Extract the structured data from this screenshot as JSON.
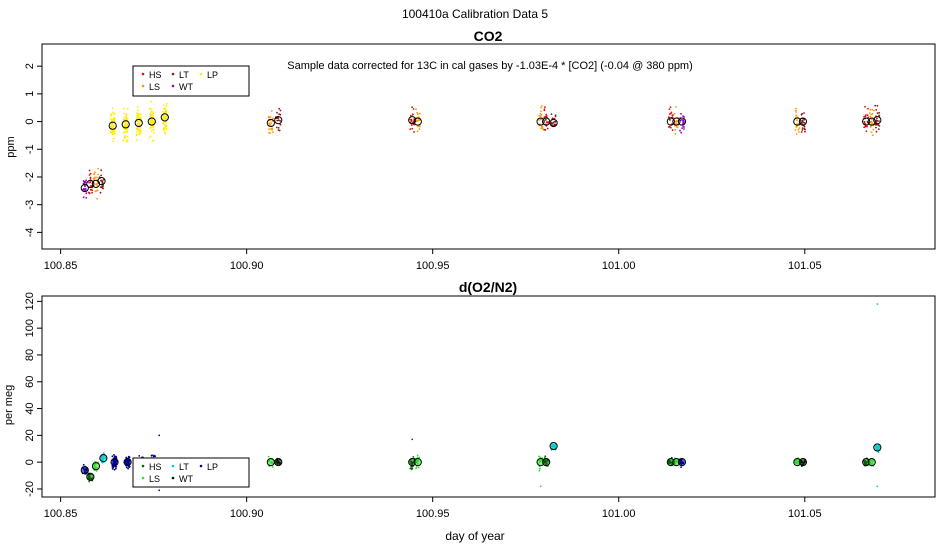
{
  "figure": {
    "title": "100410a   Calibration Data 5"
  },
  "chart_data": [
    {
      "type": "scatter",
      "title": "CO2",
      "annotation": "Sample data corrected for 13C in cal gases by -1.03E-4 * [CO2] (-0.04 @ 380 ppm)",
      "xlabel": "",
      "ylabel": "ppm",
      "xlim": [
        100.845,
        101.085
      ],
      "ylim": [
        -4.6,
        2.8
      ],
      "xticks": [
        100.85,
        100.9,
        100.95,
        101.0,
        101.05
      ],
      "xtick_labels": [
        "100.85",
        "100.90",
        "100.95",
        "101.00",
        "101.05"
      ],
      "yticks": [
        -4,
        -3,
        -2,
        -1,
        0,
        1,
        2
      ],
      "ytick_labels": [
        "-4",
        "-3",
        "-2",
        "-1",
        "0",
        "1",
        "2"
      ],
      "legend": [
        {
          "name": "HS",
          "color": "#dd1111"
        },
        {
          "name": "LS",
          "color": "#ff9900"
        },
        {
          "name": "LT",
          "color": "#8b1a1a"
        },
        {
          "name": "WT",
          "color": "#9900cc"
        },
        {
          "name": "LP",
          "color": "#ffee00"
        }
      ],
      "clusters": [
        {
          "x": 100.8565,
          "y": -2.4,
          "color": "#9900cc",
          "spread": 0.7,
          "n": 22
        },
        {
          "x": 100.858,
          "y": -2.25,
          "color": "#dd1111",
          "spread": 0.7,
          "n": 22
        },
        {
          "x": 100.8595,
          "y": -2.25,
          "color": "#ff9900",
          "spread": 0.8,
          "n": 22
        },
        {
          "x": 100.861,
          "y": -2.15,
          "color": "#8b1a1a",
          "spread": 0.6,
          "n": 22
        },
        {
          "x": 100.864,
          "y": -0.15,
          "color": "#ffee00",
          "spread": 0.9,
          "n": 60
        },
        {
          "x": 100.8675,
          "y": -0.1,
          "color": "#ffee00",
          "spread": 0.9,
          "n": 60
        },
        {
          "x": 100.871,
          "y": -0.05,
          "color": "#ffee00",
          "spread": 0.9,
          "n": 60
        },
        {
          "x": 100.8745,
          "y": 0.0,
          "color": "#ffee00",
          "spread": 0.9,
          "n": 60
        },
        {
          "x": 100.878,
          "y": 0.15,
          "color": "#ffee00",
          "spread": 0.9,
          "n": 60
        },
        {
          "x": 100.9065,
          "y": -0.05,
          "color": "#ff9900",
          "spread": 0.8,
          "n": 22
        },
        {
          "x": 100.9085,
          "y": 0.05,
          "color": "#8b1a1a",
          "spread": 0.7,
          "n": 22
        },
        {
          "x": 100.9445,
          "y": 0.05,
          "color": "#dd1111",
          "spread": 0.7,
          "n": 22
        },
        {
          "x": 100.946,
          "y": 0.0,
          "color": "#ff9900",
          "spread": 0.7,
          "n": 22
        },
        {
          "x": 100.979,
          "y": 0.0,
          "color": "#ff9900",
          "spread": 0.8,
          "n": 22
        },
        {
          "x": 100.9805,
          "y": 0.0,
          "color": "#dd1111",
          "spread": 0.7,
          "n": 22
        },
        {
          "x": 100.9825,
          "y": -0.05,
          "color": "#8b1a1a",
          "spread": 0.7,
          "n": 22
        },
        {
          "x": 101.014,
          "y": 0.0,
          "color": "#dd1111",
          "spread": 0.7,
          "n": 22
        },
        {
          "x": 101.0155,
          "y": 0.0,
          "color": "#ff9900",
          "spread": 0.7,
          "n": 22
        },
        {
          "x": 101.017,
          "y": 0.0,
          "color": "#9900cc",
          "spread": 0.7,
          "n": 22
        },
        {
          "x": 101.048,
          "y": 0.0,
          "color": "#ff9900",
          "spread": 0.8,
          "n": 22
        },
        {
          "x": 101.0495,
          "y": 0.0,
          "color": "#8b1a1a",
          "spread": 0.7,
          "n": 22
        },
        {
          "x": 101.0665,
          "y": 0.0,
          "color": "#dd1111",
          "spread": 0.8,
          "n": 22
        },
        {
          "x": 101.068,
          "y": 0.0,
          "color": "#ff9900",
          "spread": 0.7,
          "n": 22
        },
        {
          "x": 101.0695,
          "y": 0.05,
          "color": "#8b1a1a",
          "spread": 0.7,
          "n": 22
        }
      ],
      "means": [
        {
          "x": 100.8565,
          "y": -2.4
        },
        {
          "x": 100.858,
          "y": -2.25
        },
        {
          "x": 100.8595,
          "y": -2.25
        },
        {
          "x": 100.861,
          "y": -2.15
        },
        {
          "x": 100.864,
          "y": -0.15
        },
        {
          "x": 100.8675,
          "y": -0.1
        },
        {
          "x": 100.871,
          "y": -0.05
        },
        {
          "x": 100.8745,
          "y": 0.0
        },
        {
          "x": 100.878,
          "y": 0.15
        },
        {
          "x": 100.9065,
          "y": -0.05
        },
        {
          "x": 100.9085,
          "y": 0.05
        },
        {
          "x": 100.9445,
          "y": 0.05
        },
        {
          "x": 100.946,
          "y": 0.0
        },
        {
          "x": 100.979,
          "y": 0.0
        },
        {
          "x": 100.9805,
          "y": 0.0
        },
        {
          "x": 100.9825,
          "y": -0.05
        },
        {
          "x": 101.014,
          "y": 0.0
        },
        {
          "x": 101.0155,
          "y": 0.0
        },
        {
          "x": 101.017,
          "y": 0.0
        },
        {
          "x": 101.048,
          "y": 0.0
        },
        {
          "x": 101.0495,
          "y": 0.0
        },
        {
          "x": 101.0665,
          "y": 0.0
        },
        {
          "x": 101.068,
          "y": 0.0
        },
        {
          "x": 101.0695,
          "y": 0.05
        }
      ]
    },
    {
      "type": "scatter",
      "title": "d(O2/N2)",
      "xlabel": "day of year",
      "ylabel": "per meg",
      "xlim": [
        100.845,
        101.085
      ],
      "ylim": [
        -26,
        124
      ],
      "xticks": [
        100.85,
        100.9,
        100.95,
        101.0,
        101.05
      ],
      "xtick_labels": [
        "100.85",
        "100.90",
        "100.95",
        "101.00",
        "101.05"
      ],
      "yticks": [
        -20,
        0,
        20,
        40,
        60,
        80,
        100,
        120
      ],
      "ytick_labels": [
        "-20",
        "0",
        "20",
        "40",
        "60",
        "80",
        "100",
        "120"
      ],
      "legend": [
        {
          "name": "HS",
          "color": "#006400"
        },
        {
          "name": "LS",
          "color": "#33dd33"
        },
        {
          "name": "LT",
          "color": "#00cccc"
        },
        {
          "name": "WT",
          "color": "#002200"
        },
        {
          "name": "LP",
          "color": "#000099"
        }
      ],
      "clusters": [
        {
          "x": 100.8565,
          "y": -6,
          "color": "#000099",
          "spread": 6,
          "n": 22
        },
        {
          "x": 100.858,
          "y": -11,
          "color": "#006400",
          "spread": 6,
          "n": 22
        },
        {
          "x": 100.8595,
          "y": -3,
          "color": "#33dd33",
          "spread": 6,
          "n": 22
        },
        {
          "x": 100.8615,
          "y": 3,
          "color": "#00cccc",
          "spread": 6,
          "n": 22
        },
        {
          "x": 100.8645,
          "y": 0,
          "color": "#000099",
          "spread": 8,
          "n": 60
        },
        {
          "x": 100.868,
          "y": 0,
          "color": "#000099",
          "spread": 8,
          "n": 60
        },
        {
          "x": 100.8715,
          "y": 0,
          "color": "#000099",
          "spread": 8,
          "n": 60
        },
        {
          "x": 100.875,
          "y": 0,
          "color": "#000099",
          "spread": 10,
          "n": 60
        },
        {
          "x": 100.9065,
          "y": 0,
          "color": "#33dd33",
          "spread": 6,
          "n": 22
        },
        {
          "x": 100.9085,
          "y": 0,
          "color": "#002200",
          "spread": 5,
          "n": 22
        },
        {
          "x": 100.9445,
          "y": 0,
          "color": "#006400",
          "spread": 10,
          "n": 22
        },
        {
          "x": 100.946,
          "y": 0,
          "color": "#33dd33",
          "spread": 8,
          "n": 22
        },
        {
          "x": 100.979,
          "y": 0,
          "color": "#33dd33",
          "spread": 8,
          "n": 22
        },
        {
          "x": 100.9805,
          "y": 0,
          "color": "#006400",
          "spread": 5,
          "n": 22
        },
        {
          "x": 100.9825,
          "y": 12,
          "color": "#00cccc",
          "spread": 4,
          "n": 22
        },
        {
          "x": 101.014,
          "y": 0,
          "color": "#006400",
          "spread": 4,
          "n": 22
        },
        {
          "x": 101.0155,
          "y": 0,
          "color": "#33dd33",
          "spread": 4,
          "n": 22
        },
        {
          "x": 101.017,
          "y": 0,
          "color": "#000099",
          "spread": 5,
          "n": 22
        },
        {
          "x": 101.048,
          "y": 0,
          "color": "#33dd33",
          "spread": 5,
          "n": 22
        },
        {
          "x": 101.0495,
          "y": 0,
          "color": "#002200",
          "spread": 4,
          "n": 22
        },
        {
          "x": 101.0665,
          "y": 0,
          "color": "#006400",
          "spread": 4,
          "n": 22
        },
        {
          "x": 101.068,
          "y": 0,
          "color": "#33dd33",
          "spread": 4,
          "n": 22
        },
        {
          "x": 101.0695,
          "y": 11,
          "color": "#00cccc",
          "spread": 5,
          "n": 22
        }
      ],
      "outliers": [
        {
          "x": 101.0695,
          "y": 118,
          "color": "#00cccc"
        },
        {
          "x": 101.0695,
          "y": -18,
          "color": "#00cccc"
        },
        {
          "x": 100.8765,
          "y": 20,
          "color": "#000099"
        },
        {
          "x": 100.8765,
          "y": -21,
          "color": "#000099"
        },
        {
          "x": 100.9445,
          "y": 17,
          "color": "#006400"
        },
        {
          "x": 100.979,
          "y": -18,
          "color": "#33dd33"
        }
      ],
      "means": [
        {
          "x": 100.8565,
          "y": -6,
          "fill": "#000099"
        },
        {
          "x": 100.858,
          "y": -11,
          "fill": "#006400"
        },
        {
          "x": 100.8595,
          "y": -3,
          "fill": "#33dd33"
        },
        {
          "x": 100.8615,
          "y": 3,
          "fill": "#00cccc"
        },
        {
          "x": 100.8645,
          "y": 0,
          "fill": "#000099"
        },
        {
          "x": 100.868,
          "y": 0,
          "fill": "#000099"
        },
        {
          "x": 100.8715,
          "y": 0,
          "fill": "#000099"
        },
        {
          "x": 100.875,
          "y": 0,
          "fill": "#000099"
        },
        {
          "x": 100.9065,
          "y": 0,
          "fill": "#33dd33"
        },
        {
          "x": 100.9085,
          "y": 0,
          "fill": "#002200"
        },
        {
          "x": 100.9445,
          "y": 0,
          "fill": "#006400"
        },
        {
          "x": 100.946,
          "y": 0,
          "fill": "#33dd33"
        },
        {
          "x": 100.979,
          "y": 0,
          "fill": "#33dd33"
        },
        {
          "x": 100.9805,
          "y": 0,
          "fill": "#006400"
        },
        {
          "x": 100.9825,
          "y": 12,
          "fill": "#00cccc"
        },
        {
          "x": 101.014,
          "y": 0,
          "fill": "#006400"
        },
        {
          "x": 101.0155,
          "y": 0,
          "fill": "#33dd33"
        },
        {
          "x": 101.017,
          "y": 0,
          "fill": "#000099"
        },
        {
          "x": 101.048,
          "y": 0,
          "fill": "#33dd33"
        },
        {
          "x": 101.0495,
          "y": 0,
          "fill": "#002200"
        },
        {
          "x": 101.0665,
          "y": 0,
          "fill": "#006400"
        },
        {
          "x": 101.068,
          "y": 0,
          "fill": "#33dd33"
        },
        {
          "x": 101.0695,
          "y": 11,
          "fill": "#00cccc"
        }
      ]
    }
  ]
}
